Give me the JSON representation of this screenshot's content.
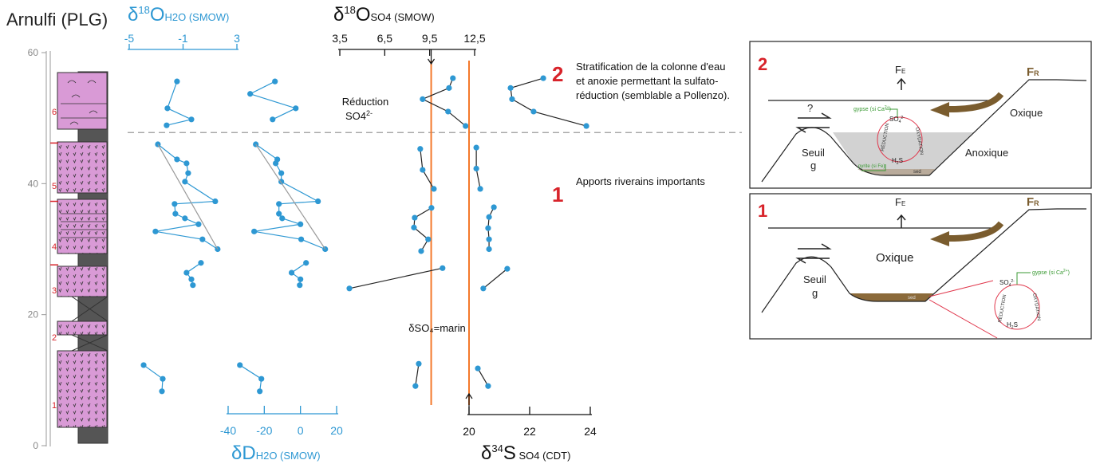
{
  "chart_data": [
    {
      "type": "strat",
      "title": "Arnulfi (PLG)",
      "ylim": [
        0,
        60
      ],
      "yticks": [
        0,
        20,
        40,
        60
      ],
      "units": [
        "1",
        "2",
        "3",
        "4",
        "5",
        "6"
      ],
      "boundaries": [
        46.2,
        37.3,
        27.6
      ],
      "stage_boundary": 47.8
    },
    {
      "type": "profile",
      "axis": "top",
      "xlim": [
        -5,
        3
      ],
      "xticks": [
        -5,
        -1,
        3
      ],
      "ylim": [
        0,
        60
      ],
      "xlabel": [
        "δ",
        "18",
        "O",
        "H2O (SMOW)"
      ],
      "line_color": "#2e98d3",
      "marker_color": "#2e98d3",
      "series": [
        {
          "x": [
            -1.45,
            -2.16,
            -0.38,
            -2.22,
            null,
            -2.87,
            -1.45,
            -0.74,
            -0.62,
            -0.86,
            1.39,
            -1.63,
            -1.57,
            -0.86,
            0.15,
            -3.05,
            0.44,
            1.57,
            null,
            0.33,
            -0.74,
            -0.38,
            -0.27,
            null,
            -3.93,
            -2.51,
            -2.57
          ],
          "y": [
            55.6,
            51.5,
            49.8,
            48.9,
            null,
            46.0,
            43.7,
            43.1,
            41.6,
            40.3,
            37.3,
            36.9,
            35.4,
            34.7,
            33.8,
            32.7,
            31.5,
            30.0,
            null,
            27.9,
            26.4,
            25.4,
            24.5,
            null,
            12.3,
            10.2,
            8.3
          ]
        },
        {
          "x": [
            -2.87,
            1.57
          ],
          "y": [
            46.0,
            30.0
          ],
          "color": "#9a9a9a",
          "markers": false
        }
      ]
    },
    {
      "type": "profile",
      "axis": "bottom",
      "xlim": [
        -40,
        20
      ],
      "xticks": [
        -40,
        -20,
        0,
        20
      ],
      "ylim": [
        0,
        60
      ],
      "xlabel": [
        "δD",
        "H2O (SMOW)"
      ],
      "line_color": "#2e98d3",
      "marker_color": "#2e98d3",
      "series": [
        {
          "x": [
            -14.1,
            -27.8,
            -2.6,
            -15.4,
            null,
            -24.7,
            -12.8,
            -13.7,
            -10.6,
            -10.6,
            9.7,
            -11.9,
            -11.9,
            -10.1,
            0,
            -25.6,
            0.4,
            13.7,
            null,
            3.1,
            -4.9,
            0,
            -0.4,
            null,
            -33.5,
            -21.6,
            -22.5
          ],
          "y": [
            55.6,
            53.7,
            51.5,
            49.8,
            null,
            46.0,
            43.7,
            43.1,
            41.6,
            40.3,
            37.3,
            36.9,
            35.4,
            34.7,
            33.8,
            32.7,
            31.5,
            30.0,
            null,
            27.9,
            26.4,
            25.4,
            24.5,
            null,
            12.3,
            10.2,
            8.3
          ]
        },
        {
          "x": [
            -24.7,
            13.7
          ],
          "y": [
            46.0,
            30.0
          ],
          "color": "#9a9a9a",
          "markers": false
        }
      ]
    },
    {
      "type": "profile",
      "axis": "top",
      "xlim": [
        3.5,
        12.5
      ],
      "xticks": [
        {
          "value": 3.5,
          "label": "3,5"
        },
        {
          "value": 6.5,
          "label": "6,5"
        },
        {
          "value": 9.5,
          "label": "9,5"
        },
        {
          "value": 12.5,
          "label": "12,5"
        }
      ],
      "ylim": [
        0,
        60
      ],
      "xlabel": [
        "δ",
        "18",
        "O",
        "SO4 (SMOW)"
      ],
      "line_color": "#222222",
      "marker_color": "#2e98d3",
      "reference": 9.6,
      "reference_color": "#f4792b",
      "reference_label": "δSO₄=marin",
      "series": [
        {
          "x": [
            11.05,
            10.79,
            9.03,
            10.73,
            11.9,
            null,
            8.87,
            9.03,
            9.78,
            null,
            9.62,
            8.5,
            8.45,
            9.4,
            8.93,
            null,
            10.36,
            4.14,
            null,
            8.77,
            8.55
          ],
          "y": [
            56.1,
            54.6,
            52.9,
            51.0,
            48.8,
            null,
            45.3,
            42.1,
            39.2,
            null,
            36.3,
            34.8,
            33.3,
            31.5,
            29.7,
            null,
            27.1,
            24.0,
            null,
            12.5,
            9.1
          ]
        }
      ]
    },
    {
      "type": "profile",
      "axis": "bottom",
      "xlim": [
        20,
        24
      ],
      "xticks": [
        20,
        22,
        24
      ],
      "ylim": [
        0,
        60
      ],
      "xlabel": [
        "δ",
        "34",
        "S",
        " SO4 (CDT)"
      ],
      "line_color": "#222222",
      "marker_color": "#2e98d3",
      "reference": 20,
      "reference_color": "#f4792b",
      "series": [
        {
          "x": [
            22.45,
            21.37,
            21.42,
            22.13,
            23.87,
            null,
            20.24,
            20.24,
            20.37,
            null,
            20.82,
            20.66,
            20.63,
            20.66,
            20.66,
            null,
            21.26,
            20.47,
            null,
            20.29,
            20.63
          ],
          "y": [
            56.1,
            54.6,
            52.9,
            51.0,
            48.8,
            null,
            45.5,
            42.3,
            39.2,
            null,
            36.4,
            34.9,
            33.2,
            31.5,
            30.0,
            null,
            27.0,
            24.0,
            null,
            11.8,
            9.1
          ]
        }
      ]
    }
  ],
  "annotations": {
    "reduction": "Réduction",
    "so4": "SO4",
    "so4_charge": "2-",
    "stage2_number": "2",
    "stage2_lines": [
      "Stratification de la colonne d'eau",
      "et anoxie permettant la sulfato-",
      "réduction (semblable a Pollenzo)."
    ],
    "stage1_number": "1",
    "stage1_text": "Apports riverains importants"
  },
  "diagrams": [
    {
      "number": "2",
      "fe": [
        "F",
        "E"
      ],
      "fr": [
        "F",
        "R"
      ],
      "question": "?",
      "gypsum": [
        "gypse (si Ca",
        "2+",
        ")"
      ],
      "so4": [
        "SO",
        "4",
        "2-"
      ],
      "h2s": [
        "H",
        "2",
        "S"
      ],
      "pyrite": "pyrite (si Fe)",
      "reduction": "RÉDUCTION",
      "oxidation": "OXYDATION",
      "sed": "sed",
      "sill": "Seuil",
      "g": "g",
      "oxic": "Oxique",
      "anoxic": "Anoxique"
    },
    {
      "number": "1",
      "fe": [
        "F",
        "E"
      ],
      "fr": [
        "F",
        "R"
      ],
      "gypsum": [
        "gypse (si Ca",
        "2+",
        ")"
      ],
      "so4": [
        "SO",
        "4",
        "2-"
      ],
      "h2s": [
        "H",
        "2",
        "S"
      ],
      "reduction": "RÉDUCTION",
      "oxidation": "OXYDATION",
      "sed": "sed",
      "sill": "Seuil",
      "g": "g",
      "oxic": "Oxique"
    }
  ]
}
